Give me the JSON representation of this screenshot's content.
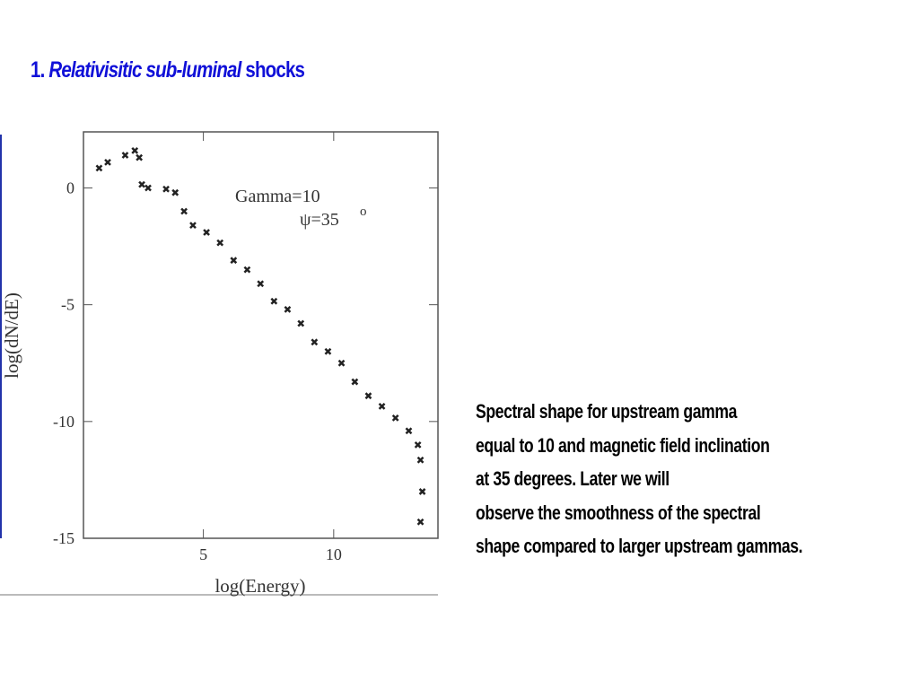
{
  "slide": {
    "title_number": "1.",
    "title_italic": "Relativisitic sub-luminal",
    "title_rest": "shocks",
    "body_lines": [
      "Spectral shape for upstream gamma",
      "equal to 10 and magnetic field inclination",
      "at 35 degrees. Later we will",
      "observe the smoothness of the spectral",
      "shape compared to larger upstream gammas."
    ]
  },
  "chart_data": {
    "type": "scatter",
    "x_label": "log(Energy)",
    "y_label": "log(dN/dE)",
    "annotations": [
      "Gamma=10",
      "ψ=35",
      "o"
    ],
    "color": "#222222",
    "x": [
      1.0,
      1.33,
      2.0,
      2.37,
      2.54,
      2.64,
      2.88,
      3.57,
      3.92,
      4.26,
      4.6,
      5.12,
      5.64,
      6.16,
      6.68,
      7.19,
      7.71,
      8.23,
      8.74,
      9.26,
      9.78,
      10.3,
      10.81,
      11.33,
      11.85,
      12.37,
      12.88,
      13.23,
      13.33,
      13.4,
      13.33
    ],
    "values": [
      0.85,
      1.1,
      1.4,
      1.6,
      1.3,
      0.15,
      0,
      -0.05,
      -0.2,
      -1.0,
      -1.6,
      -1.9,
      -2.35,
      -3.1,
      -3.5,
      -4.1,
      -4.85,
      -5.2,
      -5.8,
      -6.6,
      -7.0,
      -7.5,
      -8.3,
      -8.9,
      -9.35,
      -9.85,
      -10.4,
      -11.0,
      -11.65,
      -13.0,
      -14.3
    ],
    "xlim": [
      0.4,
      14
    ],
    "ylim": [
      -15,
      2.4
    ],
    "xticks": [
      5,
      10
    ],
    "yticks": [
      0,
      -5,
      -10,
      -15
    ]
  }
}
